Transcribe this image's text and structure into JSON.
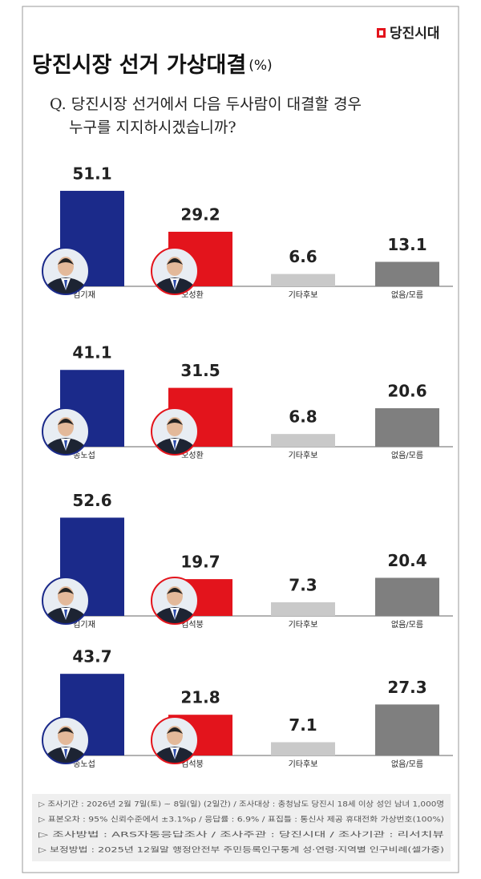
{
  "brand": "당진시대",
  "title": "당진시장 선거 가상대결",
  "title_unit": "(%)",
  "question": [
    "Q. 당진시장 선거에서 다음 두사람이 대결할 경우",
    "누구를 지지하시겠습니까?"
  ],
  "notes": [
    "▷ 조사기간 : 2026년 2월 7일(토) ~ 8일(일) (2일간) / 조사대상 : 충청남도 당진시 18세 이상 성인 남녀 1,000명",
    "▷ 표본오차 : 95% 신뢰수준에서 ±3.1%p / 응답률 : 6.9% / 표집틀 : 통신사 제공 휴대전화 가상번호(100%)",
    "▷ 조사방법 : ARS자동응답조사 / 조사주관 : 당진시대 / 조사기관 : 리서치뷰",
    "▷ 보정방법 : 2025년 12월말 행정안전부 주민등록인구통계 성·연령·지역별 인구비례(셀가중)"
  ],
  "chart_data": [
    {
      "type": "bar",
      "categories": [
        "김기재",
        "오성환",
        "기타후보",
        "없음/모름"
      ],
      "values": [
        51.1,
        29.2,
        6.6,
        13.1
      ],
      "colors": [
        "#1b2a8a",
        "#e3141c",
        "#c9c9c9",
        "#7f7f7f"
      ]
    },
    {
      "type": "bar",
      "categories": [
        "송노섭",
        "오성환",
        "기타후보",
        "없음/모름"
      ],
      "values": [
        41.1,
        31.5,
        6.8,
        20.6
      ],
      "colors": [
        "#1b2a8a",
        "#e3141c",
        "#c9c9c9",
        "#7f7f7f"
      ]
    },
    {
      "type": "bar",
      "categories": [
        "김기재",
        "김석붕",
        "기타후보",
        "없음/모름"
      ],
      "values": [
        52.6,
        19.7,
        7.3,
        20.4
      ],
      "colors": [
        "#1b2a8a",
        "#e3141c",
        "#c9c9c9",
        "#7f7f7f"
      ]
    },
    {
      "type": "bar",
      "categories": [
        "송노섭",
        "김석붕",
        "기타후보",
        "없음/모름"
      ],
      "values": [
        43.7,
        21.8,
        7.1,
        27.3
      ],
      "colors": [
        "#1b2a8a",
        "#e3141c",
        "#c9c9c9",
        "#7f7f7f"
      ]
    }
  ]
}
